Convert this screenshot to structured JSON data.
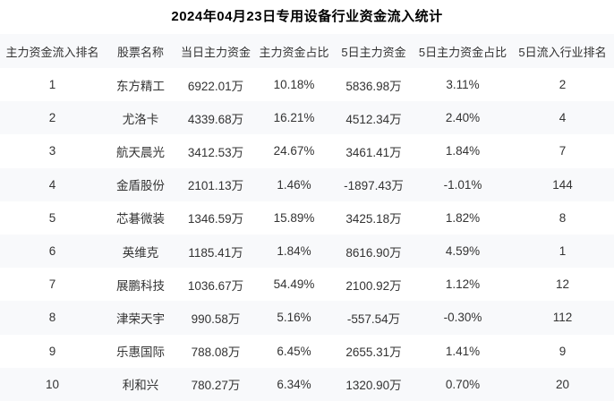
{
  "title": "2024年04月23日专用设备行业资金流入统计",
  "colors": {
    "stripe_bg": "#f8f9fb",
    "header_bg": "#f8f9fb",
    "body_text": "#333333",
    "title_text": "#000000",
    "page_bg": "#ffffff"
  },
  "chart_data": {
    "type": "table",
    "title": "2024年04月23日专用设备行业资金流入统计",
    "columns": [
      "主力资金流入排名",
      "股票名称",
      "当日主力资金",
      "主力资金占比",
      "5日主力资金",
      "5日主力资金占比",
      "5日流入行业排名"
    ],
    "rows": [
      [
        "1",
        "东方精工",
        "6922.01万",
        "10.18%",
        "5836.98万",
        "3.11%",
        "2"
      ],
      [
        "2",
        "尤洛卡",
        "4339.68万",
        "16.21%",
        "4512.34万",
        "2.40%",
        "4"
      ],
      [
        "3",
        "航天晨光",
        "3412.53万",
        "24.67%",
        "3461.41万",
        "1.84%",
        "7"
      ],
      [
        "4",
        "金盾股份",
        "2101.13万",
        "1.46%",
        "-1897.43万",
        "-1.01%",
        "144"
      ],
      [
        "5",
        "芯碁微装",
        "1346.59万",
        "15.89%",
        "3425.18万",
        "1.82%",
        "8"
      ],
      [
        "6",
        "英维克",
        "1185.41万",
        "1.84%",
        "8616.90万",
        "4.59%",
        "1"
      ],
      [
        "7",
        "展鹏科技",
        "1036.67万",
        "54.49%",
        "2100.92万",
        "1.12%",
        "12"
      ],
      [
        "8",
        "津荣天宇",
        "990.58万",
        "5.16%",
        "-557.54万",
        "-0.30%",
        "112"
      ],
      [
        "9",
        "乐惠国际",
        "788.08万",
        "6.45%",
        "2655.31万",
        "1.41%",
        "9"
      ],
      [
        "10",
        "利和兴",
        "780.27万",
        "6.34%",
        "1320.90万",
        "0.70%",
        "20"
      ]
    ]
  }
}
